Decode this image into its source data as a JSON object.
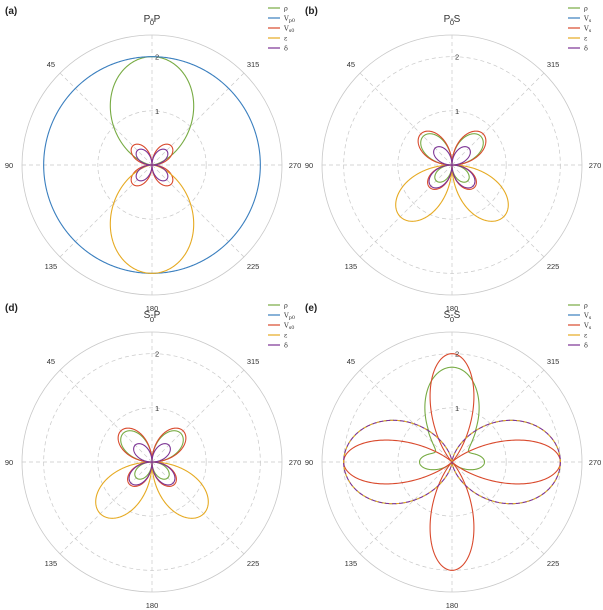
{
  "figure": {
    "background": "#ffffff"
  },
  "colors": {
    "green": "#77ab43",
    "blue": "#3a7fbf",
    "red": "#d9492c",
    "yellow": "#e6aa22",
    "purple": "#7b3294",
    "grid": "#c8c8c8",
    "frame": "#c8c8c8"
  },
  "chart_data": [
    {
      "type": "line",
      "subtype": "polar",
      "panel_label": "(a)",
      "title": "P-P",
      "angle_ticks": [
        "0",
        "45",
        "90",
        "135",
        "180",
        "225",
        "270",
        "315"
      ],
      "angle_tick_values": [
        0,
        45,
        90,
        135,
        180,
        225,
        270,
        315
      ],
      "radial_ticks": [
        "1",
        "2"
      ],
      "radial_tick_values": [
        1,
        2
      ],
      "rlim": [
        0,
        2.4
      ],
      "angle_direction": "counterclockwise from top",
      "grid": true,
      "legend_position": "top-right",
      "series": [
        {
          "name": "ρ",
          "color_key": "green",
          "formula": "2cos^2",
          "amplitude": 2.0,
          "lobes": "two vertical lobes (0° and 180°)"
        },
        {
          "name": "V_p0",
          "color_key": "blue",
          "formula": "constant",
          "amplitude": 2.0,
          "lobes": "circle of radius 2"
        },
        {
          "name": "V_s0",
          "color_key": "red",
          "formula": "|sin2|",
          "amplitude": 0.5,
          "lobes": "four lobes at 45° intervals"
        },
        {
          "name": "ε",
          "color_key": "yellow",
          "formula": "2cos^2 lower",
          "amplitude": 2.0,
          "lobes": "one lobe toward 180°"
        },
        {
          "name": "δ",
          "color_key": "purple",
          "formula": "|sin2|",
          "amplitude": 0.38,
          "lobes": "four small lobes"
        }
      ]
    },
    {
      "type": "line",
      "subtype": "polar",
      "panel_label": "(b)",
      "title": "P-S",
      "angle_ticks": [
        "0",
        "45",
        "90",
        "135",
        "180",
        "225",
        "270",
        "315"
      ],
      "angle_tick_values": [
        0,
        45,
        90,
        135,
        180,
        225,
        270,
        315
      ],
      "radial_ticks": [
        "1",
        "2"
      ],
      "radial_tick_values": [
        1,
        2
      ],
      "rlim": [
        0,
        2.4
      ],
      "grid": true,
      "legend_position": "top-right",
      "series": [
        {
          "name": "ρ",
          "color_key": "green",
          "formula": "butterfly",
          "amplitude": 0.75
        },
        {
          "name": "V_s",
          "color_key": "blue",
          "formula": "none",
          "amplitude": 0
        },
        {
          "name": "V_s",
          "color_key": "red",
          "formula": "four-lobe",
          "amplitude": 0.65
        },
        {
          "name": "ε",
          "color_key": "yellow",
          "formula": "two lower lobes",
          "amplitude": 1.35
        },
        {
          "name": "δ",
          "color_key": "purple",
          "formula": "four-lobe small",
          "amplitude": 0.55
        }
      ]
    },
    {
      "type": "line",
      "subtype": "polar",
      "panel_label": "(d)",
      "title": "S-P",
      "angle_ticks": [
        "0",
        "45",
        "90",
        "135",
        "180",
        "225",
        "270",
        "315"
      ],
      "angle_tick_values": [
        0,
        45,
        90,
        135,
        180,
        225,
        270,
        315
      ],
      "radial_ticks": [
        "1",
        "2"
      ],
      "radial_tick_values": [
        1,
        2
      ],
      "rlim": [
        0,
        2.4
      ],
      "grid": true,
      "legend_position": "top-right",
      "series": [
        {
          "name": "ρ",
          "color_key": "green",
          "formula": "butterfly",
          "amplitude": 0.75
        },
        {
          "name": "V_p0",
          "color_key": "blue",
          "formula": "none",
          "amplitude": 0
        },
        {
          "name": "V_s0",
          "color_key": "red",
          "formula": "four-lobe",
          "amplitude": 0.65
        },
        {
          "name": "ε",
          "color_key": "yellow",
          "formula": "two lower lobes",
          "amplitude": 1.35
        },
        {
          "name": "δ",
          "color_key": "purple",
          "formula": "four-lobe small",
          "amplitude": 0.55
        }
      ]
    },
    {
      "type": "line",
      "subtype": "polar",
      "panel_label": "(e)",
      "title": "S-S",
      "angle_ticks": [
        "0",
        "45",
        "90",
        "135",
        "180",
        "225",
        "270",
        "315"
      ],
      "angle_tick_values": [
        0,
        45,
        90,
        135,
        180,
        225,
        270,
        315
      ],
      "radial_ticks": [
        "1",
        "2"
      ],
      "radial_tick_values": [
        1,
        2
      ],
      "rlim": [
        0,
        2.4
      ],
      "grid": true,
      "legend_position": "top-right",
      "series": [
        {
          "name": "ρ",
          "color_key": "green",
          "formula": "vertical + small horizontal lobes",
          "amplitude": 1.75
        },
        {
          "name": "V_s",
          "color_key": "blue",
          "formula": "horizontal lobes",
          "amplitude": 2.0
        },
        {
          "name": "V_s",
          "color_key": "red",
          "formula": "four-lobe cross",
          "amplitude": 2.0
        },
        {
          "name": "ε",
          "color_key": "yellow",
          "formula": "horizontal lobes",
          "amplitude": 2.0
        },
        {
          "name": "δ",
          "color_key": "purple",
          "formula": "horizontal lobes",
          "amplitude": 2.0
        }
      ]
    }
  ]
}
